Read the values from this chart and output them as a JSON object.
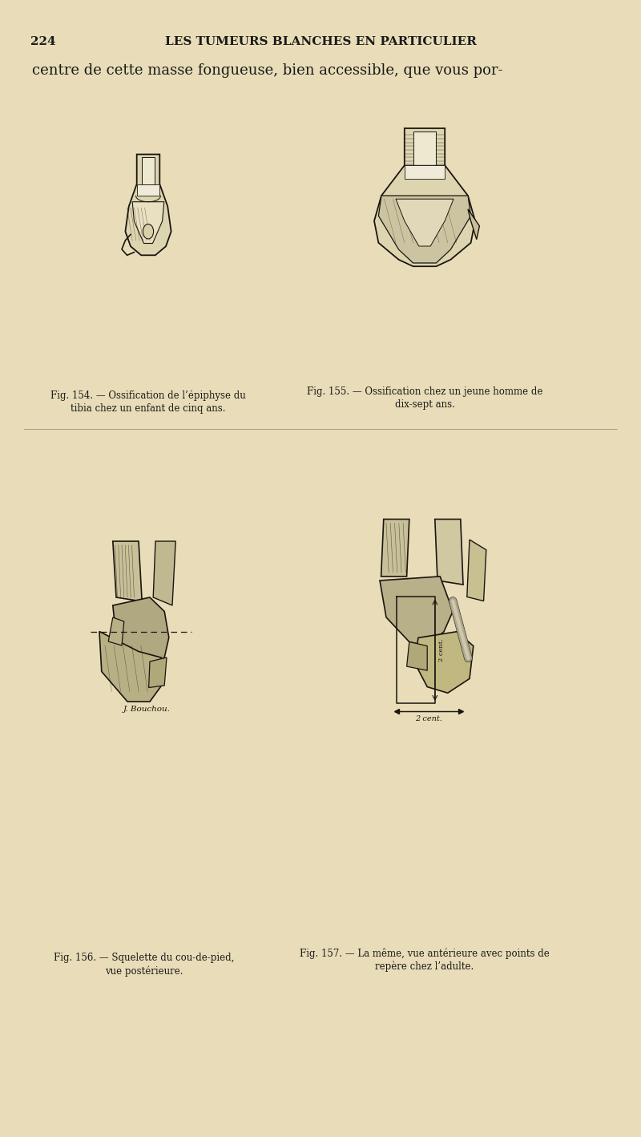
{
  "background_color": "#e8ddb8",
  "page_number": "224",
  "header_title": "LES TUMEURS BLANCHES EN PARTICULIER",
  "intro_text": "centre de cette masse fongueuse, bien accessible, que vous por-",
  "fig154_caption_line1": "Fig. 154. — Ossification de l’épiphyse du",
  "fig154_caption_line2": "tibia chez un enfant de cinq ans.",
  "fig155_caption_line1": "Fig. 155. — Ossification chez un jeune homme de",
  "fig155_caption_line2": "dix-sept ans.",
  "fig156_caption_line1": "Fig. 156. — Squelette du cou-de-pied,",
  "fig156_caption_line2": "vue postérieure.",
  "fig157_caption_line1": "Fig. 157. — La même, vue antérieure avec points de",
  "fig157_caption_line2": "repère chez l’adulte.",
  "text_color": "#1a1a1a",
  "dark_color": "#1a1510",
  "artist_signature": "J. Bouchou.",
  "fig_width": 8.0,
  "fig_height": 14.18
}
